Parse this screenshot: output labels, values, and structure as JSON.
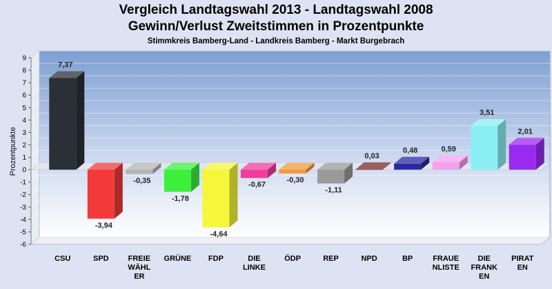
{
  "chart_data": {
    "type": "bar",
    "title": "Vergleich Landtagswahl 2013 - Landtagswahl 2008",
    "subtitle": "Gewinn/Verlust Zweitstimmen in Prozentpunkte",
    "subsubtitle": "Stimmkreis Bamberg-Land - Landkreis Bamberg - Markt Burgebrach",
    "ylabel": "Prozentpunkte",
    "ylim": [
      -6,
      9
    ],
    "yticks": [
      9,
      8,
      7,
      6,
      5,
      4,
      3,
      2,
      1,
      0,
      -1,
      -2,
      -3,
      -4,
      -5,
      -6
    ],
    "grid": true,
    "categories": [
      [
        "CSU"
      ],
      [
        "SPD"
      ],
      [
        "FREIE",
        "WÄHL",
        "ER"
      ],
      [
        "GRÜNE"
      ],
      [
        "FDP"
      ],
      [
        "DIE",
        "LINKE"
      ],
      [
        "ÖDP"
      ],
      [
        "REP"
      ],
      [
        "NPD"
      ],
      [
        "BP"
      ],
      [
        "FRAUE",
        "NLISTE"
      ],
      [
        "DIE",
        "FRANK",
        "EN"
      ],
      [
        "PIRAT",
        "EN"
      ]
    ],
    "values": [
      7.37,
      -3.94,
      -0.35,
      -1.78,
      -4.64,
      -0.67,
      -0.3,
      -1.11,
      0.03,
      0.48,
      0.59,
      3.51,
      2.01
    ],
    "value_labels": [
      "7,37",
      "-3,94",
      "-0,35",
      "-1,78",
      "-4,64",
      "-0,67",
      "-0,30",
      "-1,11",
      "0,03",
      "0,48",
      "0,59",
      "3,51",
      "2,01"
    ],
    "colors": [
      "#2b2f38",
      "#f23a3a",
      "#b4b4b4",
      "#3cf03c",
      "#f6f63a",
      "#f03c9c",
      "#f09a3c",
      "#9a9a9a",
      "#7a2a2a",
      "#2a2aa0",
      "#f4a0f0",
      "#8af0f6",
      "#9a2af0"
    ]
  }
}
